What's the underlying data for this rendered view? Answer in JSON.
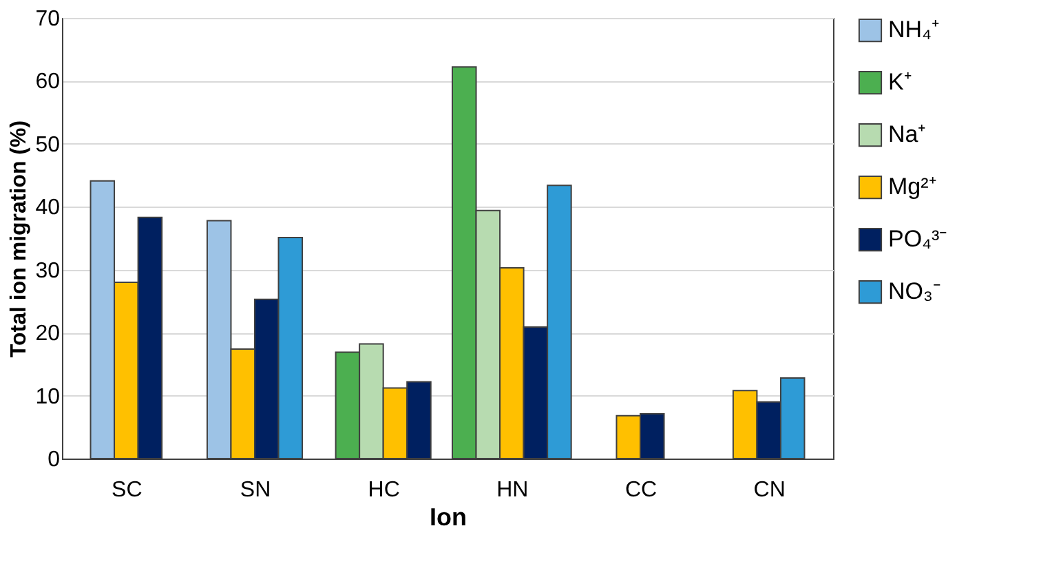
{
  "chart_data": {
    "type": "bar",
    "xlabel": "Ion",
    "ylabel": "Total ion migration (%)",
    "categories": [
      "SC",
      "SN",
      "HC",
      "HN",
      "CC",
      "CN"
    ],
    "series": [
      {
        "name": "NH₄⁺",
        "color": "#9dc3e6",
        "values": [
          44.1,
          37.8,
          null,
          null,
          null,
          null
        ]
      },
      {
        "name": "K⁺",
        "color": "#4caf50",
        "values": [
          null,
          null,
          16.9,
          62.2,
          null,
          null
        ]
      },
      {
        "name": "Na⁺",
        "color": "#b7dbb0",
        "values": [
          null,
          null,
          18.2,
          39.4,
          null,
          null
        ]
      },
      {
        "name": "Mg²⁺",
        "color": "#ffc000",
        "values": [
          28.0,
          17.4,
          11.2,
          30.3,
          6.8,
          10.8
        ]
      },
      {
        "name": "PO₄³⁻",
        "color": "#002060",
        "values": [
          38.3,
          25.3,
          12.2,
          20.9,
          7.1,
          9.0
        ]
      },
      {
        "name": "NO₃⁻",
        "color": "#2e9bd6",
        "values": [
          null,
          35.1,
          null,
          43.4,
          null,
          12.8
        ]
      }
    ],
    "ylim": [
      0,
      70
    ],
    "yticks": [
      0,
      10,
      20,
      30,
      40,
      50,
      60,
      70
    ],
    "grid": "y",
    "legend": "right"
  }
}
